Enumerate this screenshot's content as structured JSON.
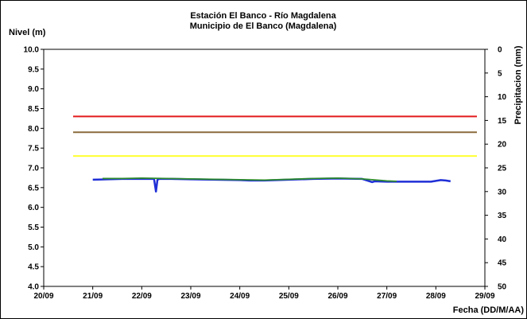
{
  "chart_data": {
    "type": "line",
    "title": "Estación El Banco - Río Magdalena",
    "subtitle": "Municipio de El Banco (Magdalena)",
    "ylabel": "Nivel (m)",
    "y2label": "Precipitacion (mm)",
    "xlabel": "Fecha (DD/M/AA)",
    "ylim": [
      4.0,
      10.0
    ],
    "y_ticks": [
      "4.0",
      "4.5",
      "5.0",
      "5.5",
      "6.0",
      "6.5",
      "7.0",
      "7.5",
      "8.0",
      "8.5",
      "9.0",
      "9.5",
      "10.0"
    ],
    "y2lim": [
      0,
      50
    ],
    "y2_reversed": true,
    "y2_ticks": [
      "0",
      "5",
      "10",
      "15",
      "20",
      "25",
      "30",
      "35",
      "40",
      "45",
      "50"
    ],
    "xlim": [
      20.0,
      29.0
    ],
    "x_ticks": [
      {
        "x": 20,
        "label": "20/09"
      },
      {
        "x": 21,
        "label": "21/09"
      },
      {
        "x": 22,
        "label": "22/09"
      },
      {
        "x": 23,
        "label": "23/09"
      },
      {
        "x": 24,
        "label": "24/09"
      },
      {
        "x": 25,
        "label": "25/09"
      },
      {
        "x": 26,
        "label": "26/09"
      },
      {
        "x": 27,
        "label": "27/09"
      },
      {
        "x": 28,
        "label": "28/09"
      },
      {
        "x": 29,
        "label": "29/09"
      }
    ],
    "grid": false,
    "thresholds": [
      {
        "value": 8.3,
        "color": "#e31a1c",
        "x": [
          20.6,
          29.0
        ]
      },
      {
        "value": 7.9,
        "color": "#8b6b3d",
        "x": [
          20.6,
          29.0
        ]
      },
      {
        "value": 7.3,
        "color": "#ffff33",
        "x": [
          20.6,
          29.0
        ]
      }
    ],
    "series": [
      {
        "color": "#1f2fd6",
        "x": [
          21.0,
          21.3,
          21.6,
          22.0,
          22.25,
          22.29,
          22.32,
          22.36,
          22.6,
          23.0,
          23.5,
          24.0,
          24.2,
          24.5,
          25.0,
          25.5,
          26.0,
          26.5,
          26.65,
          26.7,
          26.75,
          27.0,
          27.3,
          27.6,
          27.9,
          28.0,
          28.1,
          28.2,
          28.3
        ],
        "y": [
          6.7,
          6.71,
          6.72,
          6.72,
          6.72,
          6.4,
          6.7,
          6.72,
          6.72,
          6.71,
          6.7,
          6.69,
          6.68,
          6.68,
          6.7,
          6.72,
          6.73,
          6.72,
          6.66,
          6.64,
          6.66,
          6.65,
          6.65,
          6.65,
          6.65,
          6.67,
          6.69,
          6.68,
          6.66
        ]
      },
      {
        "color": "#2e8b2e",
        "x": [
          21.2,
          21.6,
          22.0,
          22.5,
          23.0,
          23.5,
          24.0,
          24.5,
          25.0,
          25.5,
          26.0,
          26.5,
          27.0,
          27.2
        ],
        "y": [
          6.73,
          6.73,
          6.74,
          6.73,
          6.72,
          6.71,
          6.7,
          6.69,
          6.71,
          6.73,
          6.74,
          6.72,
          6.67,
          6.66
        ]
      }
    ]
  }
}
